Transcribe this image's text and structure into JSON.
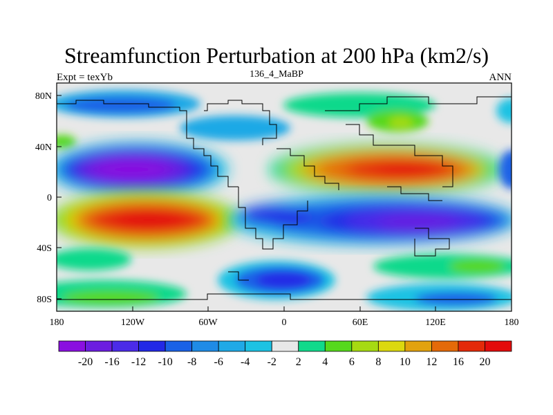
{
  "figure": {
    "title": "Streamfunction Perturbation at 200 hPa (km2/s)",
    "left_subtitle": "Expt = texYb",
    "center_subtitle": "136_4_MaBP",
    "right_subtitle": "ANN"
  },
  "chart_data": {
    "type": "heatmap",
    "title": "Streamfunction Perturbation at 200 hPa (km2/s)",
    "x_ticks": [
      "180",
      "120W",
      "60W",
      "0",
      "60E",
      "120E",
      "180"
    ],
    "y_ticks": [
      "80N",
      "40N",
      "0",
      "40S",
      "80S"
    ],
    "x_range": [
      -180,
      180
    ],
    "y_range": [
      -90,
      90
    ],
    "colorbar_labels": [
      "-20",
      "-16",
      "-12",
      "-10",
      "-8",
      "-6",
      "-4",
      "-2",
      "2",
      "4",
      "6",
      "8",
      "10",
      "12",
      "16",
      "20"
    ],
    "colorbar_colors": [
      "#8a10e0",
      "#6c1ee0",
      "#4b2be8",
      "#2229e6",
      "#1a62e6",
      "#1f8be6",
      "#1fa9e6",
      "#1cc2e3",
      "#e8e8e8",
      "#11d98b",
      "#56d81c",
      "#a6da12",
      "#dcd80f",
      "#e2a20e",
      "#e46a09",
      "#e42a09",
      "#e30c0c"
    ]
  }
}
